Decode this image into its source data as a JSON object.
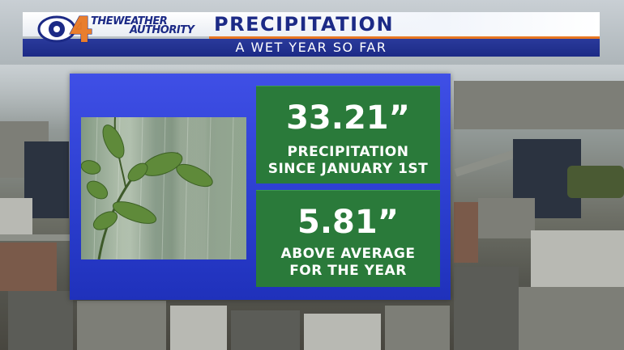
{
  "header": {
    "logo": {
      "network": "CBS",
      "channel": "4",
      "icon": "cbs-eye-logo-icon"
    },
    "brand_line1": "THEWEATHER",
    "brand_line2": "AUTHORITY",
    "title": "PRECIPITATION",
    "subtitle": "A WET YEAR SO FAR"
  },
  "stats": [
    {
      "value": "33.21”",
      "label_line1": "PRECIPITATION",
      "label_line2": "SINCE JANUARY 1ST"
    },
    {
      "value": "5.81”",
      "label_line1": "ABOVE AVERAGE",
      "label_line2": "FOR THE YEAR"
    }
  ],
  "photo": {
    "icon": "rainy-leaves-photo"
  },
  "colors": {
    "header_blue": "#1c2a86",
    "accent_orange": "#e87722",
    "panel_blue": "#2c3fd0",
    "stat_green": "#2a7a3a"
  }
}
